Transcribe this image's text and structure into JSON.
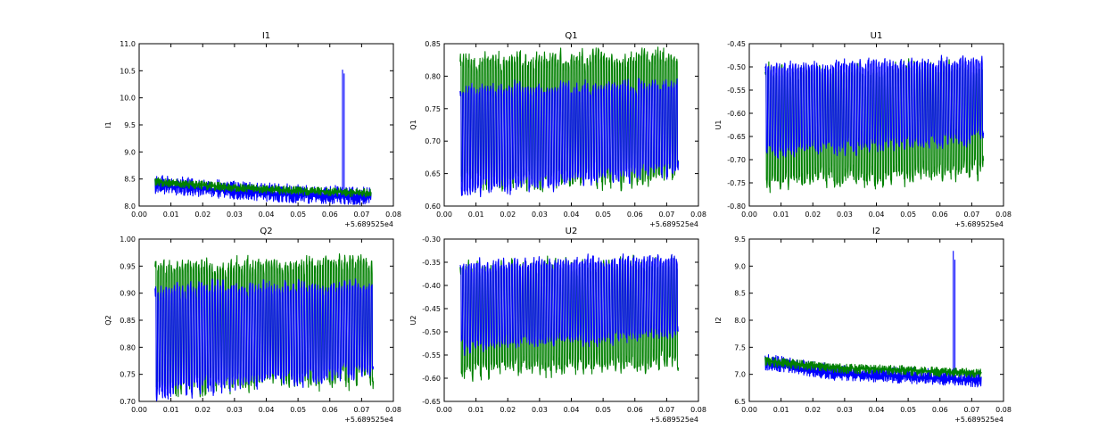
{
  "colors": {
    "series_blue": "#0000ff",
    "series_green": "#008000",
    "background": "#ffffff"
  },
  "chart_data": [
    {
      "type": "line",
      "title": "I1",
      "xlabel": "",
      "ylabel": "I1",
      "x_offset_label": "+5.689525e4",
      "xlim": [
        0.0,
        0.08
      ],
      "ylim": [
        8.0,
        11.0
      ],
      "xticks": [
        "0.00",
        "0.01",
        "0.02",
        "0.03",
        "0.04",
        "0.05",
        "0.06",
        "0.07",
        "0.08"
      ],
      "yticks": [
        "8.0",
        "8.5",
        "9.0",
        "9.5",
        "10.0",
        "10.5",
        "11.0"
      ],
      "x_range": [
        0.005,
        0.073
      ],
      "series": [
        {
          "name": "blue",
          "color": "#0000ff",
          "trend": [
            8.38,
            8.28,
            8.2,
            8.17
          ],
          "band_low": 0.15,
          "band_high": 0.2,
          "spikes": [
            {
              "x": 0.064,
              "y": 10.52
            },
            {
              "x": 0.0645,
              "y": 10.45
            }
          ]
        },
        {
          "name": "green",
          "color": "#008000",
          "trend": [
            8.45,
            8.35,
            8.28,
            8.24
          ],
          "band_low": 0.08,
          "band_high": 0.08
        }
      ]
    },
    {
      "type": "line",
      "title": "Q1",
      "xlabel": "",
      "ylabel": "Q1",
      "x_offset_label": "+5.689525e4",
      "xlim": [
        0.0,
        0.08
      ],
      "ylim": [
        0.6,
        0.85
      ],
      "xticks": [
        "0.00",
        "0.01",
        "0.02",
        "0.03",
        "0.04",
        "0.05",
        "0.06",
        "0.07",
        "0.08"
      ],
      "yticks": [
        "0.60",
        "0.65",
        "0.70",
        "0.75",
        "0.80",
        "0.85"
      ],
      "x_range": [
        0.005,
        0.073
      ],
      "series": [
        {
          "name": "green",
          "color": "#008000",
          "high": [
            0.82,
            0.83
          ],
          "low": [
            0.64,
            0.65
          ],
          "square": true
        },
        {
          "name": "blue",
          "color": "#0000ff",
          "high": [
            0.775,
            0.785
          ],
          "low": [
            0.625,
            0.66
          ],
          "square": true
        }
      ]
    },
    {
      "type": "line",
      "title": "U1",
      "xlabel": "",
      "ylabel": "U1",
      "x_offset_label": "+5.689525e4",
      "xlim": [
        0.0,
        0.08
      ],
      "ylim": [
        -0.8,
        -0.45
      ],
      "xticks": [
        "0.00",
        "0.01",
        "0.02",
        "0.03",
        "0.04",
        "0.05",
        "0.06",
        "0.07",
        "0.08"
      ],
      "yticks": [
        "-0.80",
        "-0.75",
        "-0.70",
        "-0.65",
        "-0.60",
        "-0.55",
        "-0.50",
        "-0.45"
      ],
      "x_range": [
        0.005,
        0.073
      ],
      "series": [
        {
          "name": "green",
          "color": "#008000",
          "high": [
            -0.515,
            -0.505
          ],
          "low": [
            -0.745,
            -0.72
          ],
          "square": true
        },
        {
          "name": "blue",
          "color": "#0000ff",
          "high": [
            -0.505,
            -0.49
          ],
          "low": [
            -0.68,
            -0.65
          ],
          "square": true
        }
      ]
    },
    {
      "type": "line",
      "title": "Q2",
      "xlabel": "",
      "ylabel": "Q2",
      "x_offset_label": "+5.689525e4",
      "xlim": [
        0.0,
        0.08
      ],
      "ylim": [
        0.7,
        1.0
      ],
      "xticks": [
        "0.00",
        "0.01",
        "0.02",
        "0.03",
        "0.04",
        "0.05",
        "0.06",
        "0.07",
        "0.08"
      ],
      "yticks": [
        "0.70",
        "0.75",
        "0.80",
        "0.85",
        "0.90",
        "0.95",
        "1.00"
      ],
      "x_range": [
        0.005,
        0.073
      ],
      "series": [
        {
          "name": "green",
          "color": "#008000",
          "high": [
            0.945,
            0.955
          ],
          "low": [
            0.73,
            0.75
          ],
          "square": true
        },
        {
          "name": "blue",
          "color": "#0000ff",
          "high": [
            0.905,
            0.91
          ],
          "low": [
            0.72,
            0.76
          ],
          "square": true
        }
      ]
    },
    {
      "type": "line",
      "title": "U2",
      "xlabel": "",
      "ylabel": "U2",
      "x_offset_label": "+5.689525e4",
      "xlim": [
        0.0,
        0.08
      ],
      "ylim": [
        -0.65,
        -0.3
      ],
      "xticks": [
        "0.00",
        "0.01",
        "0.02",
        "0.03",
        "0.04",
        "0.05",
        "0.06",
        "0.07",
        "0.08"
      ],
      "yticks": [
        "-0.65",
        "-0.60",
        "-0.55",
        "-0.50",
        "-0.45",
        "-0.40",
        "-0.35",
        "-0.30"
      ],
      "x_range": [
        0.005,
        0.073
      ],
      "series": [
        {
          "name": "green",
          "color": "#008000",
          "high": [
            -0.365,
            -0.355
          ],
          "low": [
            -0.58,
            -0.56
          ],
          "square": true
        },
        {
          "name": "blue",
          "color": "#0000ff",
          "high": [
            -0.36,
            -0.345
          ],
          "low": [
            -0.53,
            -0.5
          ],
          "square": true
        }
      ]
    },
    {
      "type": "line",
      "title": "I2",
      "xlabel": "",
      "ylabel": "I2",
      "x_offset_label": "+5.689525e4",
      "xlim": [
        0.0,
        0.08
      ],
      "ylim": [
        6.5,
        9.5
      ],
      "xticks": [
        "0.00",
        "0.01",
        "0.02",
        "0.03",
        "0.04",
        "0.05",
        "0.06",
        "0.07",
        "0.08"
      ],
      "yticks": [
        "6.5",
        "7.0",
        "7.5",
        "8.0",
        "8.5",
        "9.0",
        "9.5"
      ],
      "x_range": [
        0.005,
        0.073
      ],
      "series": [
        {
          "name": "blue",
          "color": "#0000ff",
          "trend": [
            7.2,
            7.0,
            6.95,
            6.88
          ],
          "band_low": 0.12,
          "band_high": 0.18,
          "spikes": [
            {
              "x": 0.0642,
              "y": 9.28
            },
            {
              "x": 0.0647,
              "y": 9.12
            }
          ]
        },
        {
          "name": "green",
          "color": "#008000",
          "trend": [
            7.25,
            7.12,
            7.08,
            7.02
          ],
          "band_low": 0.1,
          "band_high": 0.08
        }
      ]
    }
  ]
}
